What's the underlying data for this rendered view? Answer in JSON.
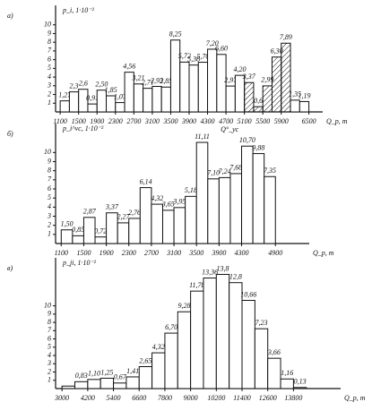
{
  "chart_data": [
    {
      "type": "histogram",
      "title": "а)",
      "ylabel": "p_i, 1·10⁻²",
      "xlabel": "Q_p, т",
      "note": "Q°_ус",
      "bins": [
        1100,
        1300,
        1500,
        1700,
        1900,
        2100,
        2300,
        2500,
        2700,
        2900,
        3100,
        3300,
        3500,
        3700,
        3900,
        4100,
        4300,
        4500,
        4700,
        4900,
        5100,
        5300,
        5500,
        5700,
        5900,
        6100,
        6300,
        6500
      ],
      "values": [
        1.27,
        2.3,
        2.6,
        0.91,
        2.5,
        1.85,
        1.07,
        4.56,
        3.21,
        2.71,
        2.93,
        2.85,
        8.25,
        5.72,
        5.38,
        5.7,
        7.2,
        6.6,
        2.97,
        4.2,
        3.37,
        0.6,
        2.99,
        6.3,
        7.89,
        1.35,
        1.19
      ],
      "value_labels": [
        "1,27",
        "2,3",
        "2,6",
        "0,91",
        "2,50",
        "1,85",
        "1,07",
        "4,56",
        "3,21",
        "2,71",
        "2,93",
        "2,85",
        "8,25",
        "5,72",
        "5,38",
        "5,70",
        "7,20",
        "6,60",
        "2,97",
        "4,20",
        "3,37",
        "0,6",
        "2,99",
        "6,30",
        "7,89",
        "1,35",
        "1,19"
      ],
      "hatch": [
        false,
        false,
        false,
        false,
        false,
        false,
        false,
        false,
        false,
        false,
        false,
        false,
        false,
        false,
        false,
        false,
        false,
        false,
        false,
        false,
        true,
        true,
        true,
        true,
        true,
        false,
        false
      ],
      "xlim": [
        1000,
        6800
      ],
      "xticks": [
        1100,
        1500,
        1900,
        2300,
        2700,
        3100,
        3500,
        3900,
        4300,
        4700,
        5100,
        5500,
        5900,
        6500
      ],
      "ylim": [
        0,
        11
      ],
      "yticks": [
        1,
        2,
        3,
        4,
        5,
        6,
        7,
        8,
        9,
        10
      ]
    },
    {
      "type": "histogram",
      "title": "б)",
      "ylabel": "p_i^vc, 1·10⁻²",
      "xlabel": "Q_p, т",
      "bins": [
        1100,
        1300,
        1500,
        1700,
        1900,
        2100,
        2300,
        2500,
        2700,
        2900,
        3100,
        3300,
        3500,
        3700,
        3900,
        4100,
        4300,
        4500,
        4700,
        4900
      ],
      "values": [
        1.5,
        0.85,
        2.87,
        0.72,
        3.37,
        2.27,
        2.76,
        6.14,
        4.32,
        3.65,
        3.95,
        5.18,
        11.11,
        7.1,
        7.24,
        7.68,
        10.7,
        9.88,
        7.35
      ],
      "value_labels": [
        "1,50",
        "0,85",
        "2,87",
        "0,72",
        "3,37",
        "2,27",
        "2,76",
        "6,14",
        "4,32",
        "3,65",
        "3,95",
        "5,18",
        "11,11",
        "7,10",
        "7,24",
        "7,68",
        "10,70",
        "9,88",
        "7,35"
      ],
      "xlim": [
        1000,
        5500
      ],
      "xticks": [
        1100,
        1500,
        1900,
        2300,
        2700,
        3100,
        3500,
        3900,
        4300,
        4900
      ],
      "ylim": [
        0,
        12
      ],
      "yticks": [
        1,
        2,
        3,
        4,
        5,
        6,
        7,
        8,
        9,
        10
      ]
    },
    {
      "type": "histogram",
      "title": "в)",
      "ylabel": "p_ji, 1·10⁻²",
      "xlabel": "Q_p, т",
      "bins": [
        3000,
        3600,
        4200,
        4800,
        5400,
        6000,
        6600,
        7200,
        7800,
        8400,
        9000,
        9600,
        10200,
        10800,
        11400,
        12000,
        12600,
        13200,
        13800,
        14400
      ],
      "values": [
        0.3,
        0.83,
        1.1,
        1.25,
        0.67,
        1.41,
        2.65,
        4.32,
        6.7,
        9.28,
        11.78,
        13.36,
        13.8,
        12.8,
        10.66,
        7.23,
        3.66,
        1.16,
        0.13
      ],
      "value_labels": [
        null,
        "0,83",
        "1,10",
        "1,25",
        "0,67",
        "1,41",
        "2,65",
        "4,32",
        "6,70",
        "9,28",
        "11,78",
        "13,36",
        "13,8",
        "12,8",
        "10,66",
        "7,23",
        "3,66",
        "1,16",
        "0,13"
      ],
      "xlim": [
        2700,
        16000
      ],
      "xticks": [
        3000,
        4200,
        5400,
        6600,
        7800,
        9000,
        10200,
        11400,
        12600,
        13800
      ],
      "ylim": [
        0,
        14.5
      ],
      "yticks": [
        1,
        2,
        3,
        4,
        5,
        6,
        7,
        8,
        9,
        10
      ]
    }
  ]
}
